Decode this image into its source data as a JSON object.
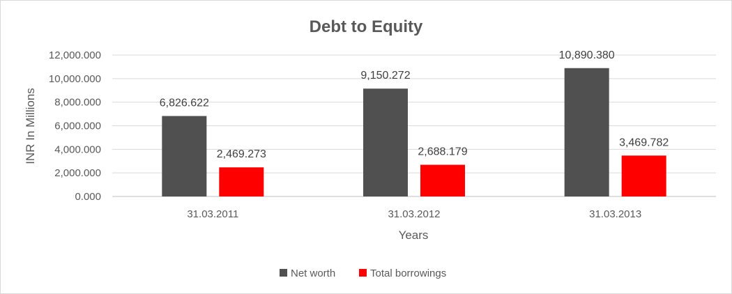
{
  "chart_data": {
    "type": "bar",
    "title": "Debt to Equity",
    "xlabel": "Years",
    "ylabel": "INR In Millions",
    "categories": [
      "31.03.2011",
      "31.03.2012",
      "31.03.2013"
    ],
    "series": [
      {
        "name": "Net worth",
        "color": "#505050",
        "values": [
          6826.622,
          9150.272,
          10890.38
        ],
        "labels": [
          "6,826.622",
          "9,150.272",
          "10,890.380"
        ]
      },
      {
        "name": "Total borrowings",
        "color": "#ff0000",
        "values": [
          2469.273,
          2688.179,
          3469.782
        ],
        "labels": [
          "2,469.273",
          "2,688.179",
          "3,469.782"
        ]
      }
    ],
    "ylim": [
      0,
      12000
    ],
    "yticks": [
      0,
      2000,
      4000,
      6000,
      8000,
      10000,
      12000
    ],
    "ytick_labels": [
      "0.000",
      "2,000.000",
      "4,000.000",
      "6,000.000",
      "8,000.000",
      "10,000.000",
      "12,000.000"
    ],
    "grid": true,
    "legend_position": "bottom"
  }
}
